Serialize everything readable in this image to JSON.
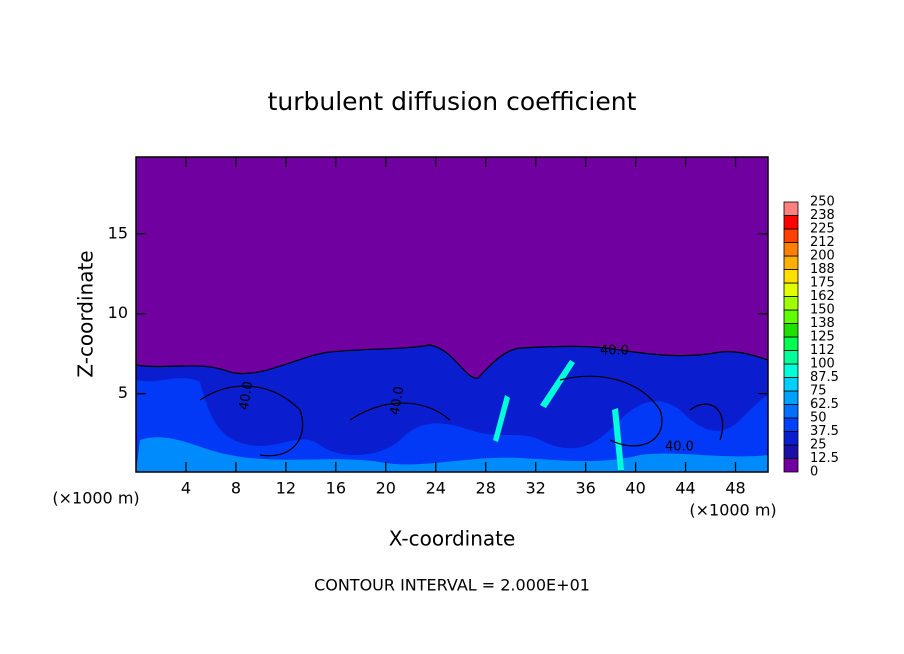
{
  "chart_data": {
    "type": "contour",
    "title": "turbulent diffusion coefficient",
    "x_label": "X-coordinate",
    "y_label": "Z-coordinate",
    "x_unit": "(×1000 m)",
    "y_unit": "(×1000 m)",
    "footer": "CONTOUR INTERVAL = 2.000E+01",
    "contour_labels": [
      "40.0",
      "40.0",
      "40.0",
      "40.0"
    ],
    "xlim": [
      0,
      50.6
    ],
    "ylim": [
      0.1,
      19.8
    ],
    "xticks": [
      4,
      8,
      12,
      16,
      20,
      24,
      28,
      32,
      36,
      40,
      44,
      48
    ],
    "yticks": [
      5,
      10,
      15
    ],
    "colorbar": {
      "levels": [
        0,
        12.5,
        25,
        37.5,
        50,
        62.5,
        75,
        87.5,
        100,
        112,
        125,
        138,
        150,
        162,
        175,
        188,
        200,
        212,
        225,
        238,
        250
      ],
      "colors": [
        "#7000a0",
        "#1a10a8",
        "#0a1ed0",
        "#0040ff",
        "#0070ff",
        "#00a0ff",
        "#00d0ff",
        "#00ffd8",
        "#00ff98",
        "#00ff50",
        "#20e000",
        "#60ff00",
        "#a0ff00",
        "#e0ff00",
        "#ffe000",
        "#ffb000",
        "#ff8000",
        "#ff4000",
        "#ff0000",
        "#ff8080"
      ]
    }
  }
}
